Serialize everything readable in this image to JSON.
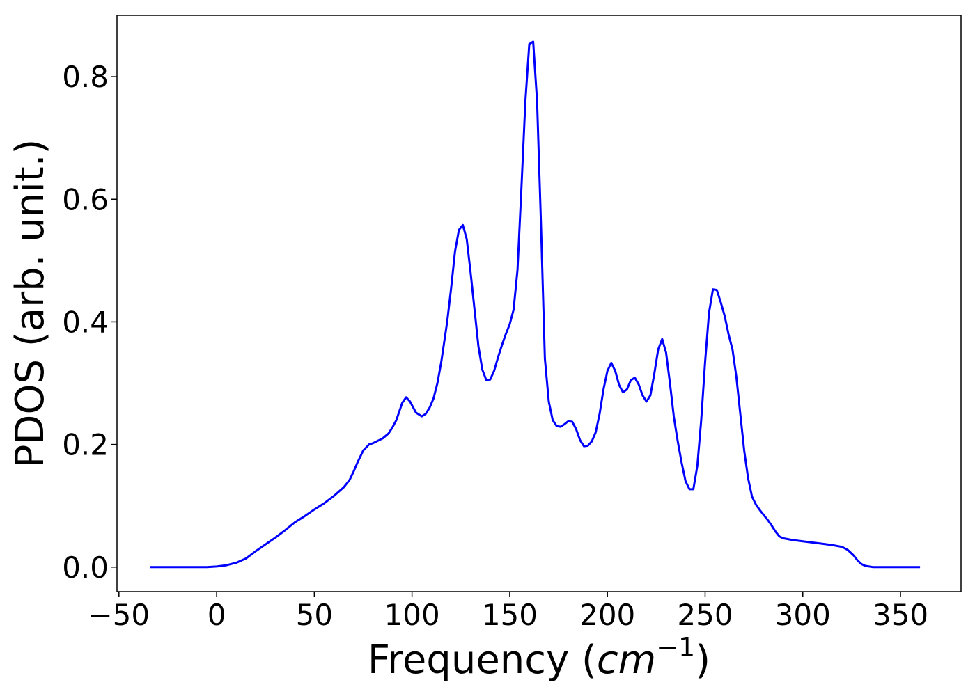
{
  "chart_data": {
    "type": "line",
    "xlabel_main": "Frequency (",
    "xlabel_unit": "cm",
    "xlabel_exp": "−1",
    "xlabel_close": ")",
    "ylabel": "PDOS (arb. unit.)",
    "xlim": [
      -51,
      381
    ],
    "ylim": [
      -0.04,
      0.9
    ],
    "xticks": [
      -50,
      0,
      50,
      100,
      150,
      200,
      250,
      300,
      350
    ],
    "xtick_labels": [
      "−50",
      "0",
      "50",
      "100",
      "150",
      "200",
      "250",
      "300",
      "350"
    ],
    "yticks": [
      0.0,
      0.2,
      0.4,
      0.6,
      0.8
    ],
    "ytick_labels": [
      "0.0",
      "0.2",
      "0.4",
      "0.6",
      "0.8"
    ],
    "grid": false,
    "line_color": "#0000ff",
    "series": [
      {
        "x": [
          -34,
          -20,
          -5,
          0,
          5,
          10,
          15,
          20,
          25,
          30,
          35,
          40,
          45,
          50,
          55,
          60,
          65,
          68,
          70,
          72,
          75,
          78,
          80,
          85,
          88,
          90,
          92,
          95,
          97,
          99,
          102,
          105,
          107,
          109,
          111,
          113,
          115,
          118,
          120,
          122,
          124,
          126,
          128,
          130,
          132,
          134,
          136,
          138,
          140,
          142,
          144,
          146,
          148,
          150,
          152,
          154,
          156,
          158,
          160,
          162,
          164,
          166,
          168,
          170,
          172,
          174,
          176,
          178,
          180,
          182,
          184,
          186,
          188,
          190,
          192,
          194,
          196,
          198,
          200,
          202,
          204,
          206,
          208,
          210,
          212,
          214,
          216,
          218,
          220,
          222,
          224,
          226,
          228,
          230,
          232,
          234,
          236,
          238,
          240,
          242,
          244,
          246,
          248,
          250,
          252,
          254,
          256,
          258,
          260,
          262,
          264,
          266,
          268,
          270,
          272,
          274,
          276,
          278,
          280,
          282,
          284,
          286,
          288,
          290,
          295,
          300,
          305,
          310,
          315,
          320,
          323,
          326,
          328,
          330,
          332,
          334,
          336,
          340,
          345,
          350,
          355,
          360
        ],
        "y": [
          0.0,
          0.0,
          0.0,
          0.001,
          0.003,
          0.007,
          0.014,
          0.026,
          0.037,
          0.048,
          0.06,
          0.073,
          0.083,
          0.094,
          0.104,
          0.116,
          0.13,
          0.142,
          0.155,
          0.17,
          0.19,
          0.2,
          0.202,
          0.21,
          0.218,
          0.228,
          0.24,
          0.268,
          0.277,
          0.27,
          0.252,
          0.246,
          0.25,
          0.26,
          0.275,
          0.3,
          0.335,
          0.4,
          0.455,
          0.515,
          0.55,
          0.558,
          0.535,
          0.48,
          0.42,
          0.36,
          0.322,
          0.305,
          0.306,
          0.32,
          0.342,
          0.362,
          0.38,
          0.396,
          0.42,
          0.485,
          0.62,
          0.76,
          0.853,
          0.857,
          0.76,
          0.56,
          0.34,
          0.27,
          0.24,
          0.23,
          0.229,
          0.233,
          0.238,
          0.237,
          0.225,
          0.207,
          0.197,
          0.198,
          0.205,
          0.22,
          0.25,
          0.29,
          0.32,
          0.333,
          0.32,
          0.297,
          0.285,
          0.29,
          0.305,
          0.309,
          0.298,
          0.28,
          0.27,
          0.28,
          0.315,
          0.355,
          0.372,
          0.35,
          0.3,
          0.245,
          0.205,
          0.17,
          0.14,
          0.127,
          0.127,
          0.165,
          0.24,
          0.335,
          0.415,
          0.453,
          0.452,
          0.432,
          0.41,
          0.38,
          0.355,
          0.31,
          0.25,
          0.19,
          0.145,
          0.115,
          0.102,
          0.093,
          0.085,
          0.077,
          0.068,
          0.058,
          0.05,
          0.047,
          0.044,
          0.042,
          0.04,
          0.038,
          0.036,
          0.033,
          0.028,
          0.019,
          0.011,
          0.005,
          0.002,
          0.001,
          0.0,
          0.0,
          0.0,
          0.0,
          0.0,
          0.0
        ]
      }
    ]
  }
}
